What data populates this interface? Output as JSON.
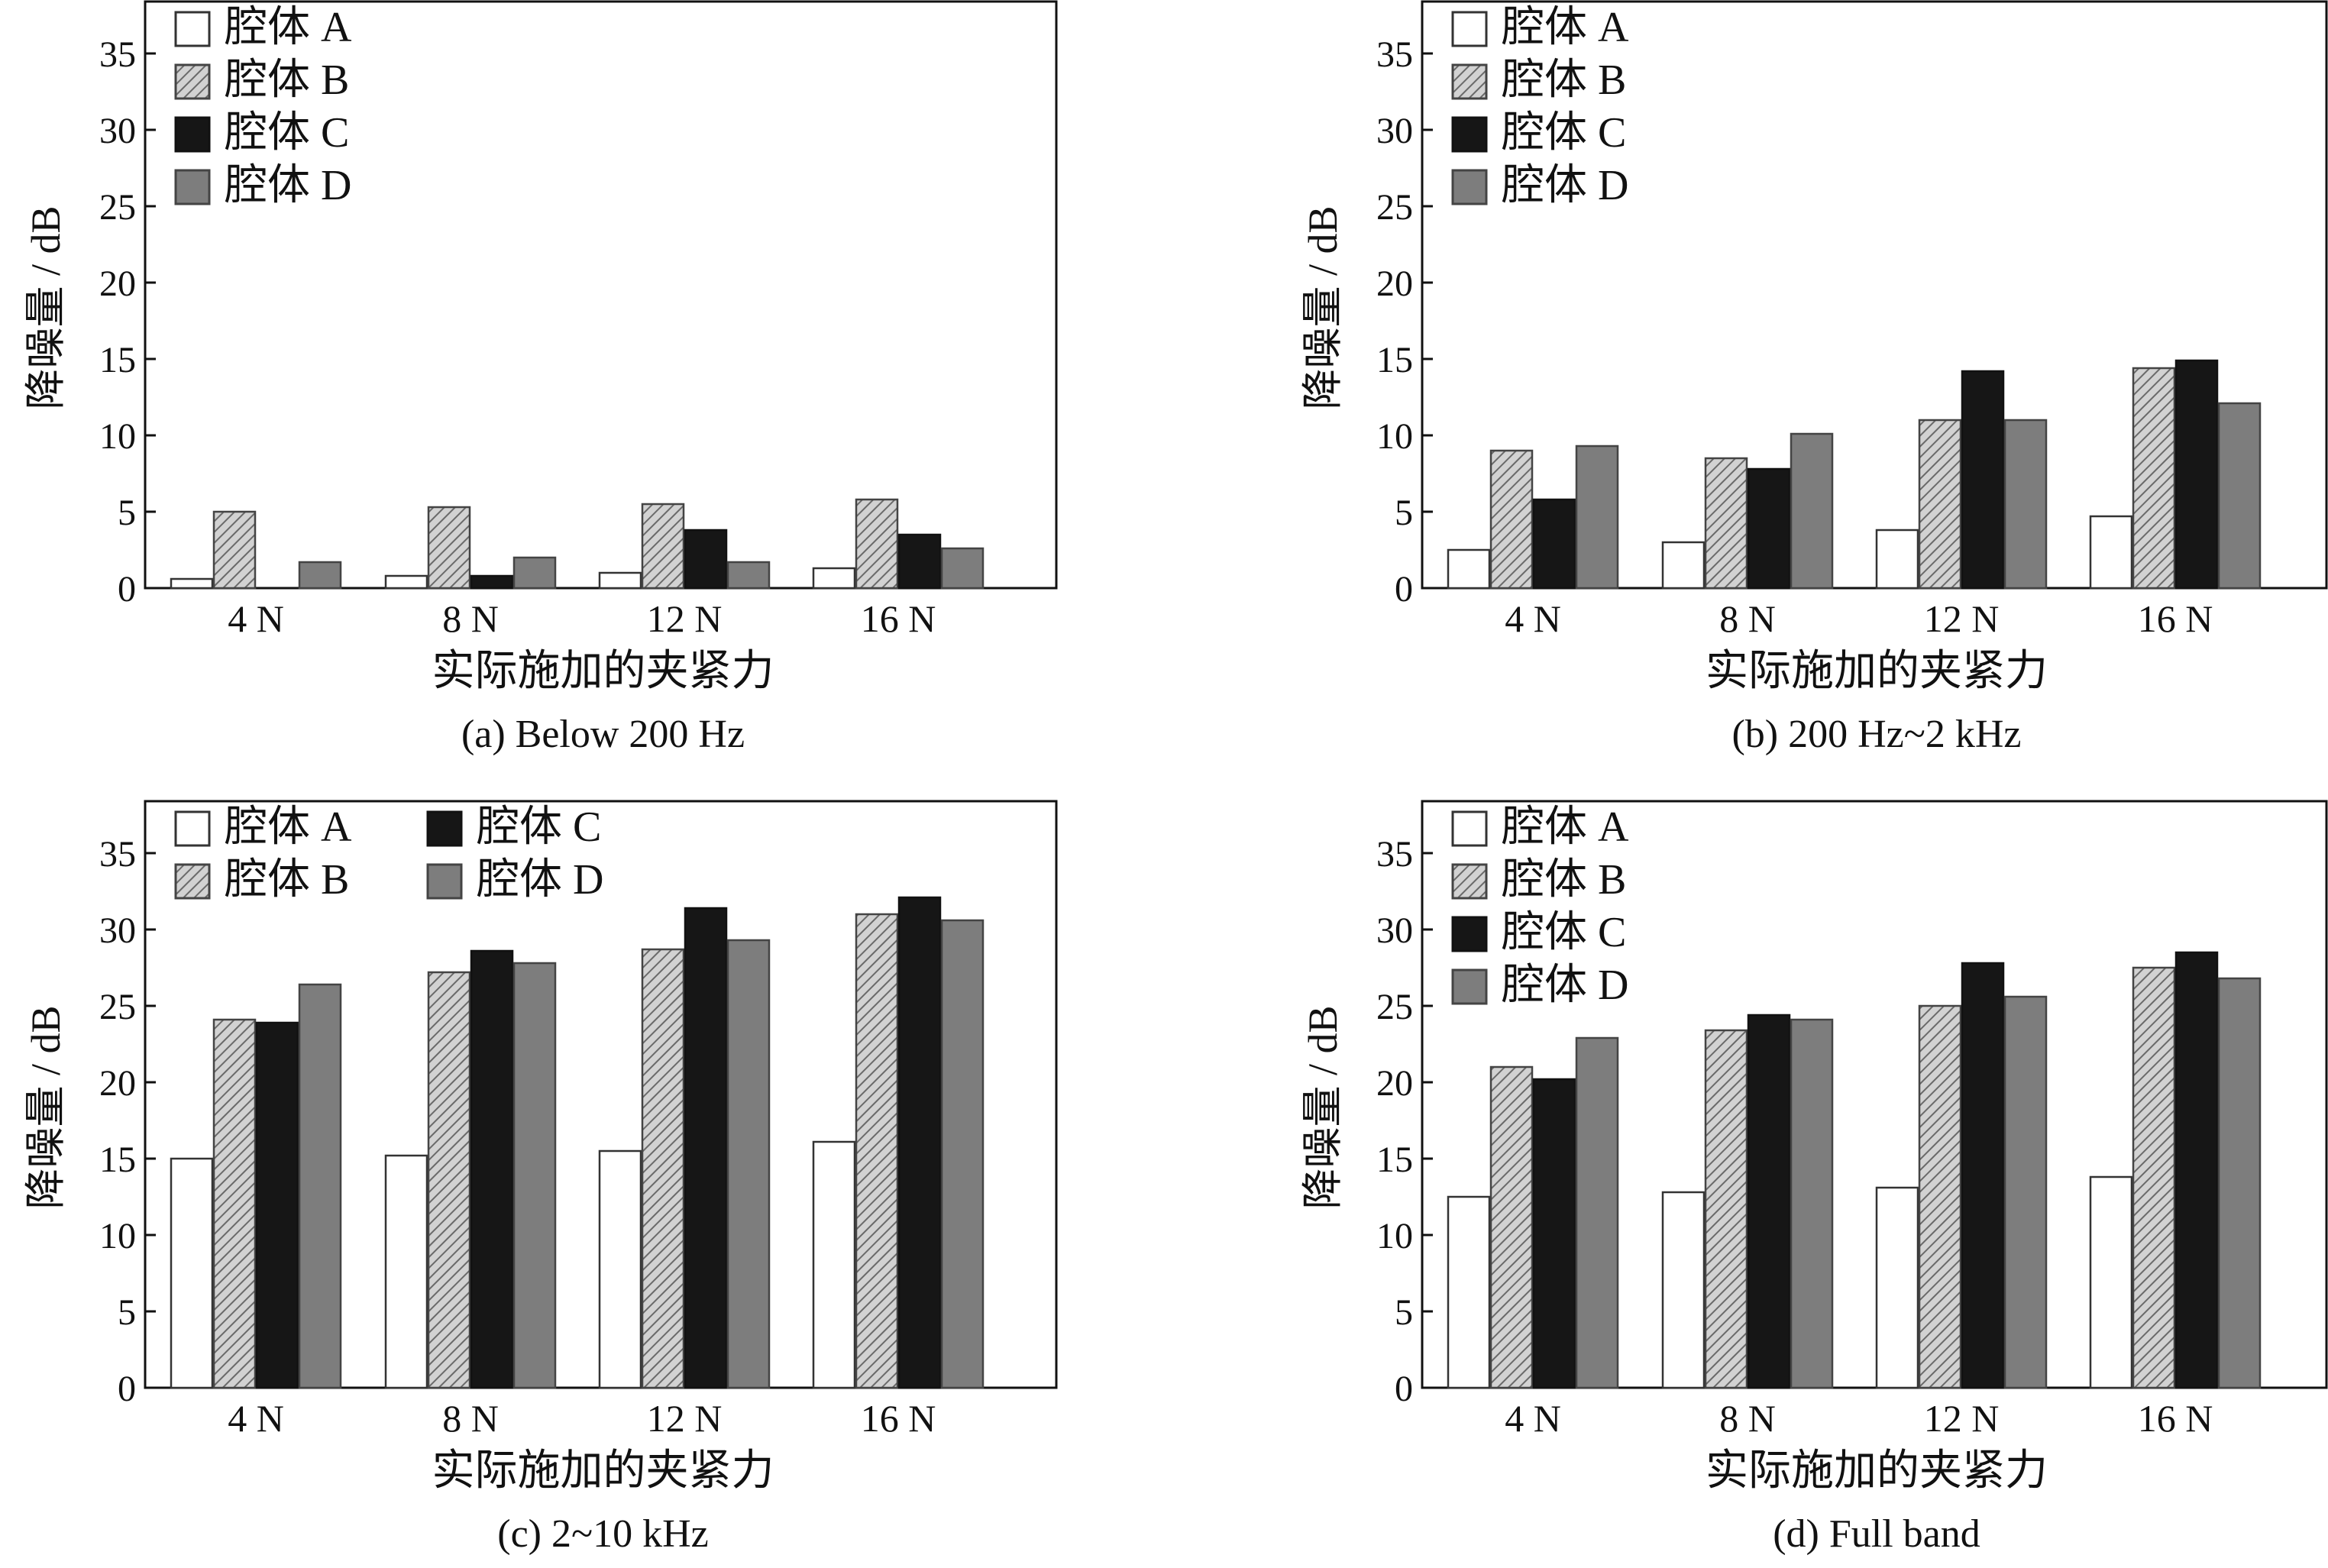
{
  "figure": {
    "categories": [
      "4 N",
      "8 N",
      "12 N",
      "16 N"
    ],
    "series_names": [
      "腔体 A",
      "腔体 B",
      "腔体 C",
      "腔体 D"
    ],
    "series_styles": [
      {
        "fill": "#ffffff",
        "stroke": "#333333",
        "pattern": "none"
      },
      {
        "fill": "#c8c8c8",
        "stroke": "#444444",
        "pattern": "hatch"
      },
      {
        "fill": "#161616",
        "stroke": "#111111",
        "pattern": "none"
      },
      {
        "fill": "#7d7d7d",
        "stroke": "#444444",
        "pattern": "none"
      }
    ],
    "yticks": [
      "0",
      "5",
      "10",
      "15",
      "20",
      "25",
      "30",
      "35"
    ]
  },
  "chart_data": [
    {
      "type": "bar",
      "caption": "(a) Below 200 Hz",
      "xlabel": "实际施加的夹紧力",
      "ylabel": "降噪量 / dB",
      "ylim": [
        0,
        38.5
      ],
      "legend": "top-left, single column",
      "categories": [
        "4 N",
        "8 N",
        "12 N",
        "16 N"
      ],
      "series": [
        {
          "name": "腔体 A",
          "values": [
            0.6,
            0.8,
            1.0,
            1.3
          ]
        },
        {
          "name": "腔体 B",
          "values": [
            5.0,
            5.3,
            5.5,
            5.8
          ]
        },
        {
          "name": "腔体 C",
          "values": [
            0.0,
            0.8,
            3.8,
            3.5
          ]
        },
        {
          "name": "腔体 D",
          "values": [
            1.7,
            2.0,
            1.7,
            2.6
          ]
        }
      ]
    },
    {
      "type": "bar",
      "caption": "(b) 200 Hz~2 kHz",
      "xlabel": "实际施加的夹紧力",
      "ylabel": "降噪量 / dB",
      "ylim": [
        0,
        38.5
      ],
      "legend": "top-left, single column",
      "categories": [
        "4 N",
        "8 N",
        "12 N",
        "16 N"
      ],
      "series": [
        {
          "name": "腔体 A",
          "values": [
            2.5,
            3.0,
            3.8,
            4.7
          ]
        },
        {
          "name": "腔体 B",
          "values": [
            9.0,
            8.5,
            11.0,
            14.4
          ]
        },
        {
          "name": "腔体 C",
          "values": [
            5.8,
            7.8,
            14.2,
            14.9
          ]
        },
        {
          "name": "腔体 D",
          "values": [
            9.3,
            10.1,
            11.0,
            12.1
          ]
        }
      ]
    },
    {
      "type": "bar",
      "caption": "(c) 2~10 kHz",
      "xlabel": "实际施加的夹紧力",
      "ylabel": "降噪量 / dB",
      "ylim": [
        0,
        38.5
      ],
      "legend": "top-left, two columns",
      "categories": [
        "4 N",
        "8 N",
        "12 N",
        "16 N"
      ],
      "series": [
        {
          "name": "腔体 A",
          "values": [
            15.0,
            15.2,
            15.5,
            16.1
          ]
        },
        {
          "name": "腔体 B",
          "values": [
            24.1,
            27.2,
            28.7,
            31.0
          ]
        },
        {
          "name": "腔体 C",
          "values": [
            23.9,
            28.6,
            31.4,
            32.1
          ]
        },
        {
          "name": "腔体 D",
          "values": [
            26.4,
            27.8,
            29.3,
            30.6
          ]
        }
      ]
    },
    {
      "type": "bar",
      "caption": "(d) Full band",
      "xlabel": "实际施加的夹紧力",
      "ylabel": "降噪量 / dB",
      "ylim": [
        0,
        38.5
      ],
      "legend": "top-left, single column",
      "categories": [
        "4 N",
        "8 N",
        "12 N",
        "16 N"
      ],
      "series": [
        {
          "name": "腔体 A",
          "values": [
            12.5,
            12.8,
            13.1,
            13.8
          ]
        },
        {
          "name": "腔体 B",
          "values": [
            21.0,
            23.4,
            25.0,
            27.5
          ]
        },
        {
          "name": "腔体 C",
          "values": [
            20.2,
            24.4,
            27.8,
            28.5
          ]
        },
        {
          "name": "腔体 D",
          "values": [
            22.9,
            24.1,
            25.6,
            26.8
          ]
        }
      ]
    }
  ]
}
